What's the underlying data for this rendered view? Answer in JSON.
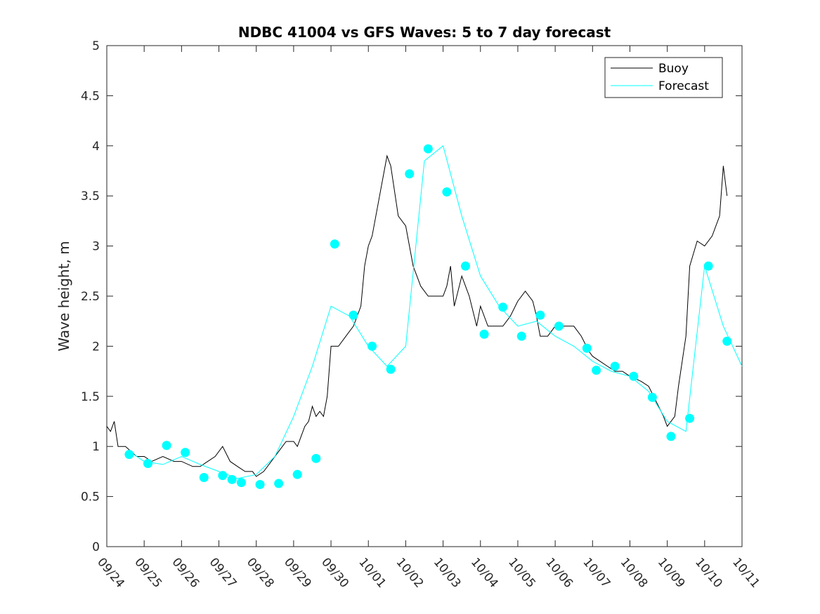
{
  "chart_data": {
    "type": "line",
    "title": "NDBC 41004 vs GFS Waves: 5 to 7 day forecast",
    "xlabel": "",
    "ylabel": "Wave height, m",
    "xlim": [
      0,
      17
    ],
    "ylim": [
      0,
      5
    ],
    "x_ticks": [
      0,
      1,
      2,
      3,
      4,
      5,
      6,
      7,
      8,
      9,
      10,
      11,
      12,
      13,
      14,
      15,
      16,
      17
    ],
    "x_tick_labels": [
      "09/24",
      "09/25",
      "09/26",
      "09/27",
      "09/28",
      "09/29",
      "09/30",
      "10/01",
      "10/02",
      "10/03",
      "10/04",
      "10/05",
      "10/06",
      "10/07",
      "10/08",
      "10/09",
      "10/10",
      "10/11"
    ],
    "y_ticks": [
      0,
      0.5,
      1,
      1.5,
      2,
      2.5,
      3,
      3.5,
      4,
      4.5,
      5
    ],
    "y_tick_labels": [
      "0",
      "0.5",
      "1",
      "1.5",
      "2",
      "2.5",
      "3",
      "3.5",
      "4",
      "4.5",
      "5"
    ],
    "legend": {
      "position": "top-right",
      "entries": [
        "Buoy",
        "Forecast"
      ]
    },
    "colors": {
      "buoy": "#000000",
      "forecast": "#00ffff",
      "axes": "#262626"
    },
    "series": [
      {
        "name": "Buoy",
        "x": [
          0,
          0.1,
          0.2,
          0.3,
          0.5,
          0.8,
          1.0,
          1.2,
          1.5,
          1.8,
          2.0,
          2.3,
          2.5,
          2.7,
          2.9,
          3.1,
          3.3,
          3.5,
          3.7,
          3.9,
          4.0,
          4.2,
          4.4,
          4.6,
          4.8,
          5.0,
          5.1,
          5.2,
          5.3,
          5.4,
          5.5,
          5.6,
          5.7,
          5.8,
          5.9,
          6.0,
          6.2,
          6.4,
          6.6,
          6.7,
          6.8,
          6.9,
          7.0,
          7.1,
          7.2,
          7.3,
          7.4,
          7.5,
          7.6,
          7.8,
          8.0,
          8.2,
          8.4,
          8.6,
          8.8,
          8.9,
          9.0,
          9.1,
          9.2,
          9.3,
          9.5,
          9.7,
          9.9,
          10.0,
          10.2,
          10.4,
          10.6,
          10.8,
          11.0,
          11.2,
          11.4,
          11.5,
          11.6,
          11.8,
          12.0,
          12.3,
          12.5,
          12.7,
          12.9,
          13.0,
          13.2,
          13.4,
          13.6,
          13.8,
          14.0,
          14.3,
          14.5,
          14.7,
          14.9,
          15.0,
          15.2,
          15.3,
          15.5,
          15.6,
          15.8,
          16.0,
          16.2,
          16.4,
          16.5,
          16.6
        ],
        "values": [
          1.2,
          1.15,
          1.25,
          1.0,
          1.0,
          0.9,
          0.9,
          0.85,
          0.9,
          0.85,
          0.85,
          0.8,
          0.8,
          0.85,
          0.9,
          1.0,
          0.85,
          0.8,
          0.75,
          0.75,
          0.7,
          0.75,
          0.85,
          0.95,
          1.05,
          1.05,
          1.0,
          1.1,
          1.2,
          1.25,
          1.4,
          1.3,
          1.35,
          1.3,
          1.5,
          2.0,
          2.0,
          2.1,
          2.2,
          2.3,
          2.4,
          2.8,
          3.0,
          3.1,
          3.3,
          3.5,
          3.7,
          3.9,
          3.8,
          3.3,
          3.2,
          2.8,
          2.6,
          2.5,
          2.5,
          2.5,
          2.5,
          2.6,
          2.8,
          2.4,
          2.7,
          2.5,
          2.2,
          2.4,
          2.2,
          2.2,
          2.2,
          2.3,
          2.45,
          2.55,
          2.45,
          2.3,
          2.1,
          2.1,
          2.2,
          2.2,
          2.2,
          2.1,
          1.95,
          1.9,
          1.85,
          1.8,
          1.75,
          1.75,
          1.7,
          1.65,
          1.6,
          1.45,
          1.3,
          1.2,
          1.3,
          1.6,
          2.1,
          2.8,
          3.05,
          3.0,
          3.1,
          3.3,
          3.8,
          3.5
        ]
      },
      {
        "name": "Forecast",
        "x": [
          0.6,
          1.0,
          1.5,
          2.0,
          2.5,
          3.0,
          3.5,
          4.0,
          4.5,
          5.0,
          5.5,
          6.0,
          6.5,
          7.0,
          7.5,
          8.0,
          8.5,
          9.0,
          9.5,
          10.0,
          10.5,
          11.0,
          11.5,
          12.0,
          12.5,
          13.0,
          13.5,
          14.0,
          14.5,
          15.0,
          15.5,
          16.0,
          16.5,
          17.0
        ],
        "values": [
          0.95,
          0.85,
          0.82,
          0.9,
          0.82,
          0.75,
          0.68,
          0.72,
          0.9,
          1.3,
          1.8,
          2.4,
          2.3,
          2.0,
          1.8,
          2.0,
          3.85,
          4.0,
          3.3,
          2.7,
          2.4,
          2.2,
          2.25,
          2.1,
          2.0,
          1.85,
          1.75,
          1.7,
          1.55,
          1.25,
          1.15,
          2.8,
          2.2,
          1.8
        ]
      }
    ],
    "markers": [
      {
        "x": 0.6,
        "y": 0.92
      },
      {
        "x": 1.1,
        "y": 0.83
      },
      {
        "x": 1.6,
        "y": 1.01
      },
      {
        "x": 2.1,
        "y": 0.94
      },
      {
        "x": 2.6,
        "y": 0.69
      },
      {
        "x": 3.1,
        "y": 0.71
      },
      {
        "x": 3.35,
        "y": 0.67
      },
      {
        "x": 3.6,
        "y": 0.64
      },
      {
        "x": 4.1,
        "y": 0.62
      },
      {
        "x": 4.6,
        "y": 0.63
      },
      {
        "x": 5.1,
        "y": 0.72
      },
      {
        "x": 5.6,
        "y": 0.88
      },
      {
        "x": 6.1,
        "y": 3.02
      },
      {
        "x": 6.6,
        "y": 2.31
      },
      {
        "x": 7.1,
        "y": 2.0
      },
      {
        "x": 7.6,
        "y": 1.77
      },
      {
        "x": 8.1,
        "y": 3.72
      },
      {
        "x": 8.6,
        "y": 3.97
      },
      {
        "x": 9.1,
        "y": 3.54
      },
      {
        "x": 9.6,
        "y": 2.8
      },
      {
        "x": 10.1,
        "y": 2.12
      },
      {
        "x": 10.6,
        "y": 2.39
      },
      {
        "x": 11.1,
        "y": 2.1
      },
      {
        "x": 11.6,
        "y": 2.31
      },
      {
        "x": 12.1,
        "y": 2.2
      },
      {
        "x": 12.85,
        "y": 1.98
      },
      {
        "x": 13.1,
        "y": 1.76
      },
      {
        "x": 13.6,
        "y": 1.8
      },
      {
        "x": 14.1,
        "y": 1.7
      },
      {
        "x": 14.6,
        "y": 1.49
      },
      {
        "x": 15.1,
        "y": 1.1
      },
      {
        "x": 15.6,
        "y": 1.28
      },
      {
        "x": 16.1,
        "y": 2.8
      },
      {
        "x": 16.6,
        "y": 2.05
      }
    ]
  }
}
